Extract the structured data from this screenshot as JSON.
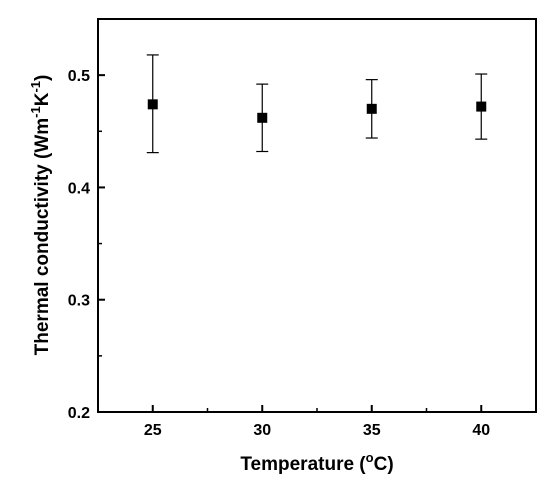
{
  "chart_data": {
    "type": "scatter",
    "x": [
      25,
      30,
      35,
      40
    ],
    "y": [
      0.474,
      0.462,
      0.47,
      0.472
    ],
    "error_upper": [
      0.518,
      0.492,
      0.496,
      0.501
    ],
    "error_lower": [
      0.431,
      0.432,
      0.444,
      0.443
    ],
    "xlim": [
      22.5,
      42.5
    ],
    "ylim": [
      0.2,
      0.55
    ],
    "x_ticks": [
      "25",
      "30",
      "35",
      "40"
    ],
    "y_ticks": [
      "0.2",
      "0.3",
      "0.4",
      "0.5"
    ],
    "xlabel": {
      "text": "Temperature (",
      "sup": "o",
      "suffix": "C)"
    },
    "ylabel": {
      "text": "Thermal conductivity (Wm",
      "sup1": "-1",
      "mid": "K",
      "sup2": "-1",
      "suffix": ")"
    },
    "grid": false,
    "marker": "filled-square",
    "marker_color": "#000000"
  }
}
